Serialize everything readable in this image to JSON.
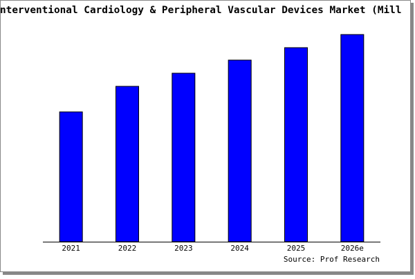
{
  "chart_data": {
    "type": "bar",
    "title": "nterventional Cardiology & Peripheral Vascular Devices Market (Mill",
    "source": "Source: Prof Research",
    "categories": [
      "2021",
      "2022",
      "2023",
      "2024",
      "2025",
      "2026e"
    ],
    "values": [
      188,
      225,
      244,
      263,
      281,
      300
    ],
    "color": "#0000ff"
  }
}
